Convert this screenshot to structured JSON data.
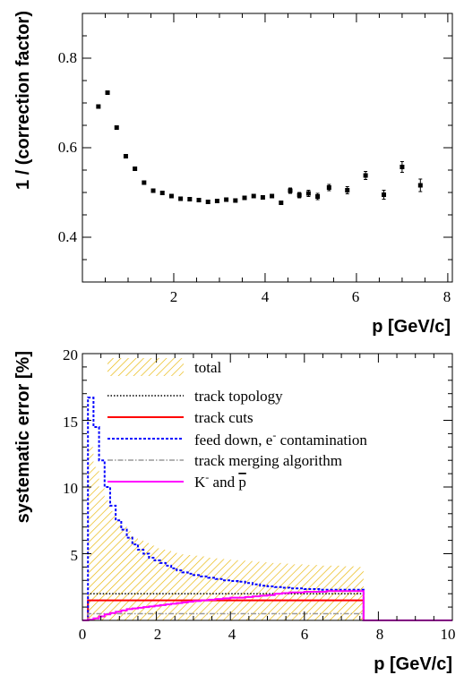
{
  "chart_data": [
    {
      "type": "scatter",
      "xlabel": "p [GeV/c]",
      "ylabel": "1 / (correction factor)",
      "xlim": [
        0,
        8.1
      ],
      "ylim": [
        0.3,
        0.9
      ],
      "xticks": [
        "2",
        "4",
        "6",
        "8"
      ],
      "yticks": [
        "0.4",
        "0.6",
        "0.8"
      ],
      "grid": false,
      "series": [
        {
          "marker": "filled-square",
          "color": "#000000",
          "x": [
            0.35,
            0.55,
            0.75,
            0.95,
            1.15,
            1.35,
            1.55,
            1.75,
            1.95,
            2.15,
            2.35,
            2.55,
            2.75,
            2.95,
            3.15,
            3.35,
            3.55,
            3.75,
            3.95,
            4.15,
            4.35,
            4.55,
            4.75,
            4.95,
            5.15,
            5.4,
            5.8,
            6.2,
            6.6,
            7.0,
            7.4
          ],
          "y": [
            0.692,
            0.723,
            0.645,
            0.581,
            0.553,
            0.522,
            0.504,
            0.499,
            0.492,
            0.486,
            0.485,
            0.483,
            0.479,
            0.481,
            0.484,
            0.482,
            0.488,
            0.492,
            0.489,
            0.492,
            0.477,
            0.504,
            0.494,
            0.498,
            0.491,
            0.511,
            0.505,
            0.538,
            0.495,
            0.557,
            0.516
          ],
          "yerr": [
            0.005,
            0.004,
            0.004,
            0.003,
            0.003,
            0.003,
            0.003,
            0.003,
            0.003,
            0.003,
            0.003,
            0.003,
            0.003,
            0.003,
            0.003,
            0.003,
            0.003,
            0.003,
            0.003,
            0.004,
            0.005,
            0.006,
            0.006,
            0.007,
            0.007,
            0.007,
            0.008,
            0.009,
            0.01,
            0.012,
            0.014
          ]
        }
      ]
    },
    {
      "type": "area",
      "xlabel": "p [GeV/c]",
      "ylabel": "systematic error [%]",
      "xlim": [
        0,
        10
      ],
      "ylim": [
        0,
        20
      ],
      "xticks": [
        "0",
        "2",
        "4",
        "6",
        "8",
        "10"
      ],
      "yticks": [
        "5",
        "10",
        "15",
        "20"
      ],
      "grid": false,
      "legend": "top-right",
      "bin_edges": [
        0.0,
        0.15,
        0.3,
        0.45,
        0.6,
        0.75,
        0.9,
        1.05,
        1.2,
        1.35,
        1.5,
        1.65,
        1.8,
        1.95,
        2.1,
        2.25,
        2.4,
        2.55,
        2.7,
        2.85,
        3.0,
        3.2,
        3.4,
        3.6,
        3.8,
        4.0,
        4.2,
        4.4,
        4.6,
        4.8,
        5.0,
        5.2,
        5.4,
        5.6,
        5.8,
        6.0,
        6.2,
        6.4,
        6.6,
        6.8,
        7.0,
        7.2,
        7.4,
        7.6,
        8.0,
        9.0,
        10.0
      ],
      "series": [
        {
          "name": "total",
          "style": "hatched",
          "color": "#e8b400",
          "values": [
            0,
            13.0,
            11.5,
            10.0,
            9.0,
            8.2,
            7.6,
            7.1,
            6.7,
            6.3,
            6.0,
            5.8,
            5.6,
            5.4,
            5.3,
            5.2,
            5.1,
            5.0,
            4.95,
            4.9,
            4.85,
            4.8,
            4.7,
            4.65,
            4.6,
            4.55,
            4.5,
            4.45,
            4.4,
            4.35,
            4.3,
            4.3,
            4.25,
            4.2,
            4.2,
            4.15,
            4.15,
            4.1,
            4.1,
            4.1,
            4.05,
            4.05,
            4.0,
            0,
            0,
            0
          ]
        },
        {
          "name": "track topology",
          "style": "dotted",
          "color": "#000000",
          "values": [
            0,
            2.0,
            2.0,
            2.0,
            2.0,
            2.0,
            2.0,
            2.0,
            2.0,
            2.0,
            2.0,
            2.0,
            2.0,
            2.0,
            2.0,
            2.0,
            2.0,
            2.0,
            2.0,
            2.0,
            2.0,
            2.0,
            2.0,
            2.0,
            2.0,
            2.0,
            2.0,
            2.0,
            2.0,
            2.0,
            2.0,
            2.0,
            2.0,
            2.0,
            2.0,
            2.0,
            2.0,
            2.0,
            2.0,
            2.0,
            2.0,
            2.0,
            2.0,
            0,
            0,
            0
          ]
        },
        {
          "name": "track cuts",
          "style": "solid",
          "color": "#ff0000",
          "values": [
            0,
            1.5,
            1.5,
            1.5,
            1.5,
            1.5,
            1.5,
            1.5,
            1.5,
            1.5,
            1.5,
            1.5,
            1.5,
            1.5,
            1.5,
            1.5,
            1.5,
            1.5,
            1.5,
            1.5,
            1.5,
            1.5,
            1.5,
            1.5,
            1.5,
            1.5,
            1.5,
            1.5,
            1.5,
            1.5,
            1.5,
            1.5,
            1.5,
            1.5,
            1.5,
            1.5,
            1.5,
            1.5,
            1.5,
            1.5,
            1.5,
            1.5,
            1.5,
            0,
            0,
            0
          ]
        },
        {
          "name": "feed down, e",
          "name_sup": "-",
          "name_suffix": " contamination",
          "style": "dashed",
          "color": "#0000ff",
          "values": [
            0,
            16.7,
            14.5,
            12.0,
            10.0,
            8.6,
            7.5,
            6.8,
            6.2,
            5.7,
            5.3,
            5.0,
            4.7,
            4.5,
            4.3,
            4.1,
            3.9,
            3.75,
            3.6,
            3.5,
            3.4,
            3.3,
            3.2,
            3.1,
            3.0,
            2.95,
            2.9,
            2.8,
            2.7,
            2.6,
            2.55,
            2.5,
            2.45,
            2.4,
            2.4,
            2.35,
            2.35,
            2.3,
            2.3,
            2.3,
            2.3,
            2.3,
            2.3,
            0,
            0,
            0
          ]
        },
        {
          "name": "track merging algorithm",
          "style": "dash-dot",
          "color": "#999999",
          "values": [
            0,
            0.5,
            0.5,
            0.5,
            0.5,
            0.5,
            0.5,
            0.5,
            0.5,
            0.5,
            0.5,
            0.5,
            0.5,
            0.5,
            0.5,
            0.5,
            0.5,
            0.5,
            0.5,
            0.5,
            0.5,
            0.5,
            0.5,
            0.5,
            0.5,
            0.5,
            0.5,
            0.5,
            0.5,
            0.5,
            0.5,
            0.5,
            0.5,
            0.5,
            0.5,
            0.5,
            0.5,
            0.5,
            0.5,
            0.5,
            0.5,
            0.5,
            0.5,
            0,
            0,
            0
          ]
        },
        {
          "name": "K",
          "name_sup": "-",
          "name_mid": " and ",
          "name_tail": "p",
          "style": "solid",
          "color": "#ff00ff",
          "values": [
            0,
            0.05,
            0.15,
            0.3,
            0.45,
            0.55,
            0.65,
            0.75,
            0.85,
            0.9,
            0.95,
            1.0,
            1.05,
            1.1,
            1.15,
            1.2,
            1.25,
            1.3,
            1.35,
            1.4,
            1.45,
            1.5,
            1.55,
            1.6,
            1.65,
            1.7,
            1.7,
            1.75,
            1.8,
            1.85,
            1.9,
            2.0,
            2.05,
            2.1,
            2.1,
            2.15,
            2.15,
            2.15,
            2.2,
            2.2,
            2.2,
            2.2,
            2.2,
            0,
            0,
            0
          ]
        }
      ]
    }
  ]
}
